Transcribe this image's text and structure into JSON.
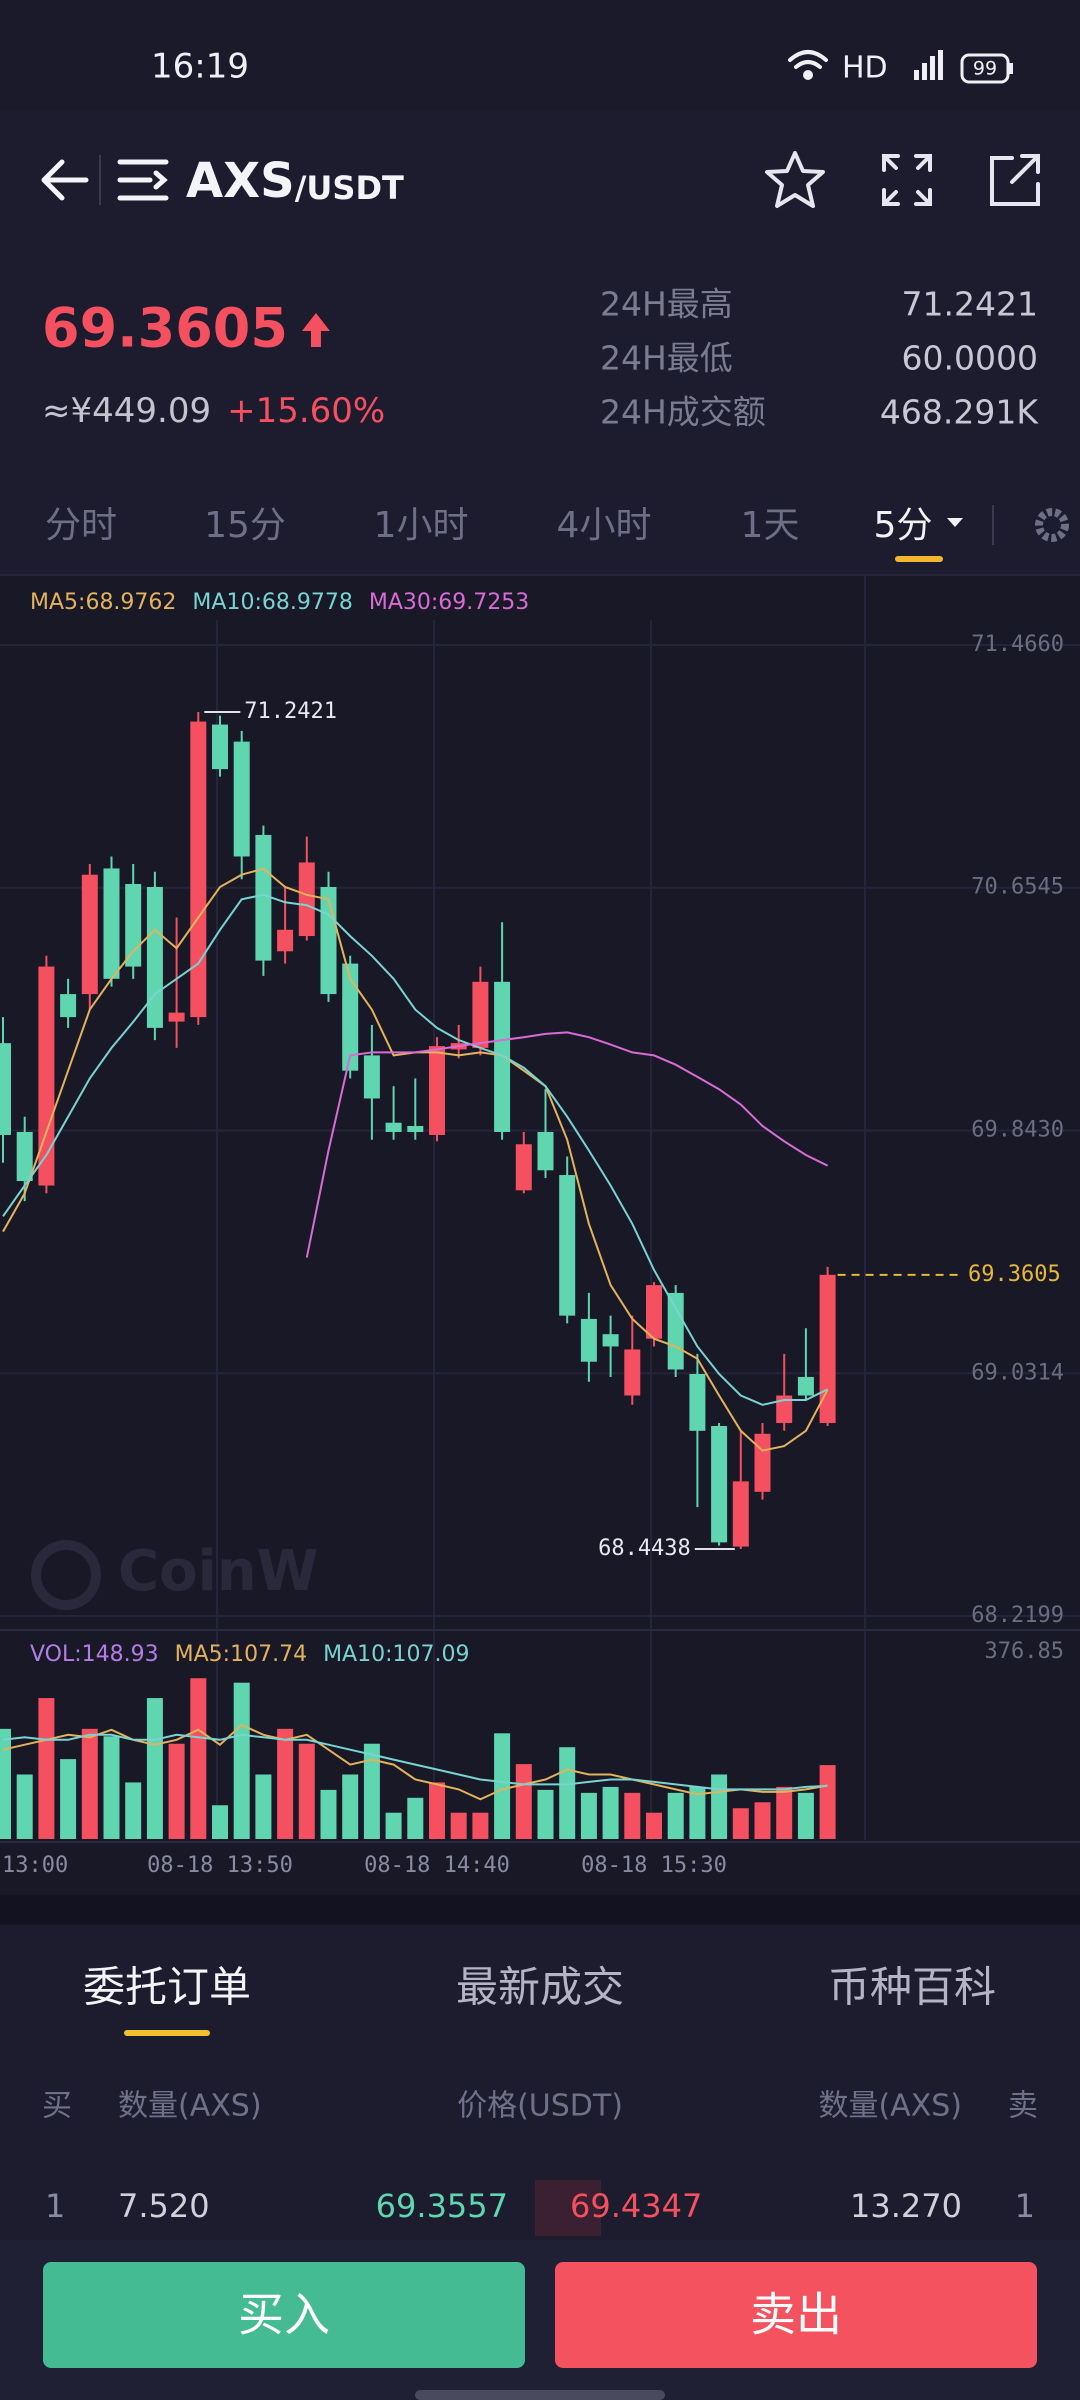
{
  "status_bar": {
    "time": "16:19",
    "network": "HD",
    "battery": "99"
  },
  "header": {
    "base": "AXS",
    "quote": "/USDT"
  },
  "ticker": {
    "price": "69.3605",
    "cny": "≈¥449.09",
    "change": "+15.60%",
    "stats": [
      {
        "label": "24H最高",
        "value": "71.2421"
      },
      {
        "label": "24H最低",
        "value": "60.0000"
      },
      {
        "label": "24H成交额",
        "value": "468.291K"
      }
    ]
  },
  "intervals": {
    "items": [
      "分时",
      "15分",
      "1小时",
      "4小时",
      "1天",
      "5分"
    ],
    "active": 5
  },
  "chart_data": {
    "type": "candlestick",
    "up_color": "#f4505f",
    "down_color": "#5fd6b0",
    "ylim": [
      68.2199,
      71.466
    ],
    "yticks": [
      {
        "value": 71.466,
        "label": "71.4660"
      },
      70.6545,
      {
        "value": 69.843,
        "label": "69.8430"
      },
      69.0314,
      68.2199
    ],
    "grid": true,
    "categories": [
      "13:00",
      null,
      null,
      null,
      null,
      null,
      null,
      null,
      null,
      null,
      "08-18 13:50",
      null,
      null,
      null,
      null,
      null,
      null,
      null,
      null,
      null,
      "08-18 14:40",
      null,
      null,
      null,
      null,
      null,
      null,
      null,
      null,
      null,
      "08-18 15:30",
      null,
      null,
      null,
      null,
      null,
      null,
      null,
      null
    ],
    "candles": [
      {
        "open": 70.135,
        "high": 70.222,
        "low": 69.735,
        "close": 69.828
      },
      {
        "open": 69.838,
        "high": 69.889,
        "low": 69.607,
        "close": 69.674
      },
      {
        "open": 69.659,
        "high": 70.427,
        "low": 69.633,
        "close": 70.391
      },
      {
        "open": 70.299,
        "high": 70.35,
        "low": 70.186,
        "close": 70.222
      },
      {
        "open": 70.299,
        "high": 70.734,
        "low": 70.248,
        "close": 70.698
      },
      {
        "open": 70.719,
        "high": 70.759,
        "low": 70.324,
        "close": 70.35
      },
      {
        "open": 70.667,
        "high": 70.734,
        "low": 70.35,
        "close": 70.391
      },
      {
        "open": 70.657,
        "high": 70.708,
        "low": 70.145,
        "close": 70.186
      },
      {
        "open": 70.207,
        "high": 70.555,
        "low": 70.119,
        "close": 70.237
      },
      {
        "open": 70.222,
        "high": 71.2421,
        "low": 70.196,
        "close": 71.21
      },
      {
        "open": 71.2,
        "high": 71.23,
        "low": 71.026,
        "close": 71.051
      },
      {
        "open": 71.143,
        "high": 71.179,
        "low": 70.683,
        "close": 70.759
      },
      {
        "open": 70.831,
        "high": 70.862,
        "low": 70.36,
        "close": 70.411
      },
      {
        "open": 70.442,
        "high": 70.657,
        "low": 70.401,
        "close": 70.514
      },
      {
        "open": 70.493,
        "high": 70.826,
        "low": 70.478,
        "close": 70.739
      },
      {
        "open": 70.657,
        "high": 70.708,
        "low": 70.273,
        "close": 70.299
      },
      {
        "open": 70.401,
        "high": 70.427,
        "low": 70.017,
        "close": 70.043
      },
      {
        "open": 70.094,
        "high": 70.196,
        "low": 69.812,
        "close": 69.95
      },
      {
        "open": 69.869,
        "high": 69.991,
        "low": 69.812,
        "close": 69.838
      },
      {
        "open": 69.858,
        "high": 70.017,
        "low": 69.812,
        "close": 69.838
      },
      {
        "open": 69.828,
        "high": 70.155,
        "low": 69.807,
        "close": 70.125
      },
      {
        "open": 70.114,
        "high": 70.196,
        "low": 70.084,
        "close": 70.135
      },
      {
        "open": 70.119,
        "high": 70.391,
        "low": 70.094,
        "close": 70.34
      },
      {
        "open": 70.34,
        "high": 70.539,
        "low": 69.812,
        "close": 69.838
      },
      {
        "open": 69.643,
        "high": 69.838,
        "low": 69.633,
        "close": 69.797
      },
      {
        "open": 69.838,
        "high": 69.981,
        "low": 69.684,
        "close": 69.71
      },
      {
        "open": 69.694,
        "high": 69.756,
        "low": 69.198,
        "close": 69.224
      },
      {
        "open": 69.213,
        "high": 69.3,
        "low": 69.003,
        "close": 69.07
      },
      {
        "open": 69.162,
        "high": 69.224,
        "low": 69.019,
        "close": 69.121
      },
      {
        "open": 68.957,
        "high": 69.224,
        "low": 68.926,
        "close": 69.111
      },
      {
        "open": 69.147,
        "high": 69.336,
        "low": 69.121,
        "close": 69.326
      },
      {
        "open": 69.3,
        "high": 69.326,
        "low": 69.019,
        "close": 69.044
      },
      {
        "open": 69.029,
        "high": 69.096,
        "low": 68.584,
        "close": 68.839
      },
      {
        "open": 68.855,
        "high": 68.865,
        "low": 68.455,
        "close": 68.466
      },
      {
        "open": 68.452,
        "high": 68.839,
        "low": 68.4438,
        "close": 68.67
      },
      {
        "open": 68.635,
        "high": 68.865,
        "low": 68.609,
        "close": 68.829
      },
      {
        "open": 68.865,
        "high": 69.096,
        "low": 68.839,
        "close": 68.957
      },
      {
        "open": 69.019,
        "high": 69.182,
        "low": 68.942,
        "close": 68.957
      },
      {
        "open": 68.865,
        "high": 69.387,
        "low": 68.855,
        "close": 69.3605
      }
    ],
    "series": [
      {
        "name": "MA5:68.9762",
        "color": "#e3b25c",
        "values": [
          69.505,
          69.633,
          69.838,
          70.043,
          70.247,
          70.35,
          70.442,
          70.514,
          70.452,
          70.555,
          70.657,
          70.698,
          70.718,
          70.657,
          70.631,
          70.616,
          70.35,
          70.247,
          70.094,
          70.104,
          70.104,
          70.094,
          70.104,
          70.094,
          70.043,
          69.991,
          69.812,
          69.531,
          69.326,
          69.213,
          69.147,
          69.121,
          69.08,
          68.957,
          68.839,
          68.773,
          68.788,
          68.839,
          68.9762
        ]
      },
      {
        "name": "MA10:68.9778",
        "color": "#79d3d2",
        "values": [
          69.556,
          69.659,
          69.761,
          69.889,
          70.017,
          70.119,
          70.206,
          70.299,
          70.35,
          70.401,
          70.514,
          70.616,
          70.631,
          70.606,
          70.596,
          70.565,
          70.493,
          70.427,
          70.35,
          70.247,
          70.186,
          70.145,
          70.119,
          70.094,
          70.053,
          69.991,
          69.889,
          69.776,
          69.659,
          69.531,
          69.377,
          69.249,
          69.121,
          69.029,
          68.957,
          68.926,
          68.942,
          68.942,
          68.9778
        ]
      },
      {
        "name": "MA30:69.7253",
        "color": "#d96bd6",
        "values": [
          null,
          null,
          null,
          null,
          null,
          null,
          null,
          null,
          null,
          null,
          null,
          null,
          null,
          null,
          69.418,
          69.776,
          70.094,
          70.104,
          70.104,
          70.104,
          70.114,
          70.125,
          70.135,
          70.145,
          70.155,
          70.166,
          70.171,
          70.155,
          70.13,
          70.104,
          70.094,
          70.063,
          70.022,
          69.981,
          69.93,
          69.858,
          69.807,
          69.761,
          69.7253
        ]
      }
    ],
    "volume": {
      "name": "VOL:148.93",
      "name_color": "#b47de6",
      "ylim": [
        0,
        376.85
      ],
      "yticks": [
        376.85
      ],
      "values": [
        222,
        130,
        284,
        161,
        222,
        207,
        114,
        284,
        192,
        324,
        68,
        315,
        130,
        222,
        192,
        99,
        130,
        192,
        53,
        83,
        114,
        53,
        53,
        213,
        151,
        99,
        185,
        93,
        105,
        93,
        53,
        93,
        105,
        130,
        62,
        74,
        105,
        93,
        148.93
      ],
      "series": [
        {
          "name": "MA5:107.74",
          "color": "#e3b25c",
          "values": [
            180,
            190,
            200,
            210,
            205,
            220,
            200,
            190,
            200,
            220,
            190,
            230,
            210,
            200,
            210,
            180,
            150,
            160,
            150,
            120,
            110,
            100,
            80,
            100,
            110,
            120,
            140,
            130,
            130,
            120,
            110,
            100,
            90,
            95,
            100,
            95,
            95,
            100,
            107.74
          ]
        },
        {
          "name": "MA10:107.09",
          "color": "#79d3d2",
          "values": [
            200,
            205,
            200,
            200,
            210,
            210,
            200,
            200,
            210,
            205,
            200,
            210,
            205,
            200,
            200,
            190,
            180,
            170,
            160,
            150,
            140,
            130,
            120,
            115,
            110,
            110,
            110,
            115,
            120,
            120,
            115,
            110,
            105,
            100,
            100,
            100,
            100,
            105,
            107.09
          ]
        }
      ]
    }
  },
  "watermark": "CoinW",
  "order_tabs": {
    "items": [
      "委托订单",
      "最新成交",
      "币种百科"
    ],
    "active": 0
  },
  "order_book": {
    "columns": [
      "买",
      "数量(AXS)",
      "价格(USDT)",
      "数量(AXS)",
      "卖"
    ],
    "rows": [
      [
        "1",
        "7.520",
        "69.3557",
        "69.4347",
        "13.270",
        "1"
      ]
    ]
  },
  "actions": {
    "buy": "买入",
    "sell": "卖出"
  }
}
